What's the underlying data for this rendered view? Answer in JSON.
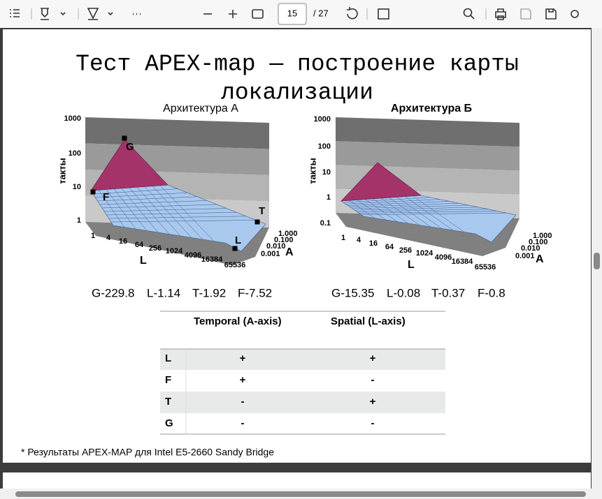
{
  "toolbar": {
    "page": "15",
    "pages": "/ 27"
  },
  "slide": {
    "title_lines": [
      "Тест APEX-map — построение карты",
      "локализации"
    ],
    "charts": [
      {
        "title": "Архитектура А",
        "y_label": "такты",
        "y_ticks": [
          "1000",
          "100",
          "10",
          "1"
        ],
        "l_ticks": [
          "1",
          "4",
          "16",
          "64",
          "256",
          "1024",
          "4096",
          "16384",
          "65536"
        ],
        "l_label": "L",
        "a_ticks": [
          "1.000",
          "0.100",
          "0.010",
          "0.001"
        ],
        "a_label": "A",
        "points": [
          "G",
          "F",
          "T",
          "L"
        ],
        "scores": [
          "G-229.8",
          "L-1.14",
          "T-1.92",
          "F-7.52"
        ]
      },
      {
        "title": "Архитектура Б",
        "y_label": "такты",
        "y_ticks": [
          "1000",
          "100",
          "10",
          "1",
          "0.1"
        ],
        "l_ticks": [
          "1",
          "4",
          "16",
          "64",
          "256",
          "1024",
          "4096",
          "16384",
          "65536"
        ],
        "l_label": "L",
        "a_ticks": [
          "1.000",
          "0.100",
          "0.010",
          "0.001"
        ],
        "a_label": "A",
        "scores": [
          "G-15.35",
          "L-0.08",
          "T-0.37",
          "F-0.8"
        ]
      }
    ],
    "table": {
      "header": [
        "Temporal (A-axis)",
        "Spatial (L-axis)"
      ],
      "rows": [
        [
          "L",
          "+",
          "+"
        ],
        [
          "F",
          "+",
          "-"
        ],
        [
          "T",
          "-",
          "+"
        ],
        [
          "G",
          "-",
          "-"
        ]
      ]
    },
    "footnote": "* Результаты APEX-MAP для Intel E5-2660 Sandy Bridge"
  }
}
